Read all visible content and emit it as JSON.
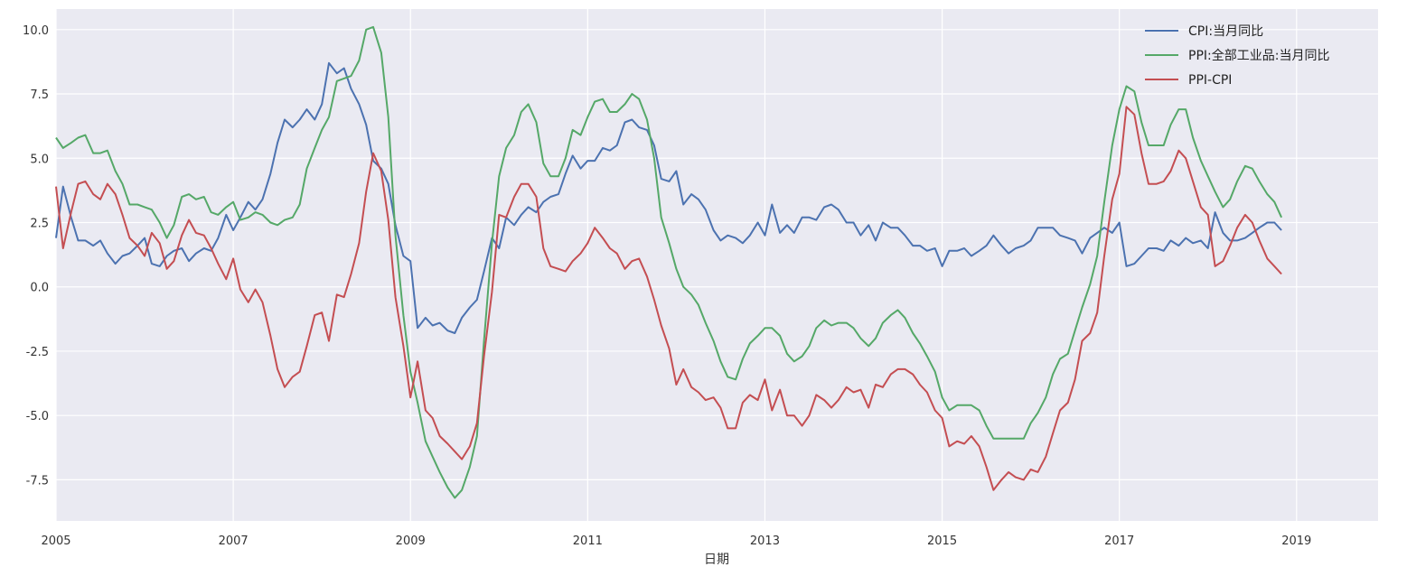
{
  "chart_data": {
    "type": "line",
    "title": "",
    "xlabel": "日期",
    "ylabel": "",
    "xlim": [
      2005.0,
      2019.92
    ],
    "ylim": [
      -9.1,
      10.8
    ],
    "xticks": [
      2005,
      2007,
      2009,
      2011,
      2013,
      2015,
      2017,
      2019
    ],
    "xtick_labels": [
      "2005",
      "2007",
      "2009",
      "2011",
      "2013",
      "2015",
      "2017",
      "2019"
    ],
    "yticks": [
      -7.5,
      -5.0,
      -2.5,
      0.0,
      2.5,
      5.0,
      7.5,
      10.0
    ],
    "ytick_labels": [
      "-7.5",
      "-5.0",
      "-2.5",
      "0.0",
      "2.5",
      "5.0",
      "7.5",
      "10.0"
    ],
    "grid": true,
    "legend_position": "top-right",
    "colors": {
      "background": "#EAEAF2",
      "grid": "#FFFFFF"
    },
    "series": [
      {
        "name": "CPI:当月同比",
        "color": "#4C72B0",
        "x": [
          2005.0,
          2005.08,
          2005.17,
          2005.25,
          2005.33,
          2005.42,
          2005.5,
          2005.58,
          2005.67,
          2005.75,
          2005.83,
          2005.92,
          2006.0,
          2006.08,
          2006.17,
          2006.25,
          2006.33,
          2006.42,
          2006.5,
          2006.58,
          2006.67,
          2006.75,
          2006.83,
          2006.92,
          2007.0,
          2007.08,
          2007.17,
          2007.25,
          2007.33,
          2007.42,
          2007.5,
          2007.58,
          2007.67,
          2007.75,
          2007.83,
          2007.92,
          2008.0,
          2008.08,
          2008.17,
          2008.25,
          2008.33,
          2008.42,
          2008.5,
          2008.58,
          2008.67,
          2008.75,
          2008.83,
          2008.92,
          2009.0,
          2009.08,
          2009.17,
          2009.25,
          2009.33,
          2009.42,
          2009.5,
          2009.58,
          2009.67,
          2009.75,
          2009.83,
          2009.92,
          2010.0,
          2010.08,
          2010.17,
          2010.25,
          2010.33,
          2010.42,
          2010.5,
          2010.58,
          2010.67,
          2010.75,
          2010.83,
          2010.92,
          2011.0,
          2011.08,
          2011.17,
          2011.25,
          2011.33,
          2011.42,
          2011.5,
          2011.58,
          2011.67,
          2011.75,
          2011.83,
          2011.92,
          2012.0,
          2012.08,
          2012.17,
          2012.25,
          2012.33,
          2012.42,
          2012.5,
          2012.58,
          2012.67,
          2012.75,
          2012.83,
          2012.92,
          2013.0,
          2013.08,
          2013.17,
          2013.25,
          2013.33,
          2013.42,
          2013.5,
          2013.58,
          2013.67,
          2013.75,
          2013.83,
          2013.92,
          2014.0,
          2014.08,
          2014.17,
          2014.25,
          2014.33,
          2014.42,
          2014.5,
          2014.58,
          2014.67,
          2014.75,
          2014.83,
          2014.92,
          2015.0,
          2015.08,
          2015.17,
          2015.25,
          2015.33,
          2015.42,
          2015.5,
          2015.58,
          2015.67,
          2015.75,
          2015.83,
          2015.92,
          2016.0,
          2016.08,
          2016.17,
          2016.25,
          2016.33,
          2016.42,
          2016.5,
          2016.58,
          2016.67,
          2016.75,
          2016.83,
          2016.92,
          2017.0,
          2017.08,
          2017.17,
          2017.25,
          2017.33,
          2017.42,
          2017.5,
          2017.58,
          2017.67,
          2017.75,
          2017.83,
          2017.92,
          2018.0,
          2018.08,
          2018.17,
          2018.25,
          2018.33,
          2018.42,
          2018.5,
          2018.58,
          2018.67,
          2018.75,
          2018.83
        ],
        "values": [
          1.9,
          3.9,
          2.7,
          1.8,
          1.8,
          1.6,
          1.8,
          1.3,
          0.9,
          1.2,
          1.3,
          1.6,
          1.9,
          0.9,
          0.8,
          1.2,
          1.4,
          1.5,
          1.0,
          1.3,
          1.5,
          1.4,
          1.9,
          2.8,
          2.2,
          2.7,
          3.3,
          3.0,
          3.4,
          4.4,
          5.6,
          6.5,
          6.2,
          6.5,
          6.9,
          6.5,
          7.1,
          8.7,
          8.3,
          8.5,
          7.7,
          7.1,
          6.3,
          4.9,
          4.6,
          4.0,
          2.4,
          1.2,
          1.0,
          -1.6,
          -1.2,
          -1.5,
          -1.4,
          -1.7,
          -1.8,
          -1.2,
          -0.8,
          -0.5,
          0.6,
          1.9,
          1.5,
          2.7,
          2.4,
          2.8,
          3.1,
          2.9,
          3.3,
          3.5,
          3.6,
          4.4,
          5.1,
          4.6,
          4.9,
          4.9,
          5.4,
          5.3,
          5.5,
          6.4,
          6.5,
          6.2,
          6.1,
          5.5,
          4.2,
          4.1,
          4.5,
          3.2,
          3.6,
          3.4,
          3.0,
          2.2,
          1.8,
          2.0,
          1.9,
          1.7,
          2.0,
          2.5,
          2.0,
          3.2,
          2.1,
          2.4,
          2.1,
          2.7,
          2.7,
          2.6,
          3.1,
          3.2,
          3.0,
          2.5,
          2.5,
          2.0,
          2.4,
          1.8,
          2.5,
          2.3,
          2.3,
          2.0,
          1.6,
          1.6,
          1.4,
          1.5,
          0.8,
          1.4,
          1.4,
          1.5,
          1.2,
          1.4,
          1.6,
          2.0,
          1.6,
          1.3,
          1.5,
          1.6,
          1.8,
          2.3,
          2.3,
          2.3,
          2.0,
          1.9,
          1.8,
          1.3,
          1.9,
          2.1,
          2.3,
          2.1,
          2.5,
          0.8,
          0.9,
          1.2,
          1.5,
          1.5,
          1.4,
          1.8,
          1.6,
          1.9,
          1.7,
          1.8,
          1.5,
          2.9,
          2.1,
          1.8,
          1.8,
          1.9,
          2.1,
          2.3,
          2.5,
          2.5,
          2.2
        ]
      },
      {
        "name": "PPI:全部工业品:当月同比",
        "color": "#55A868",
        "x": [
          2005.0,
          2005.08,
          2005.17,
          2005.25,
          2005.33,
          2005.42,
          2005.5,
          2005.58,
          2005.67,
          2005.75,
          2005.83,
          2005.92,
          2006.0,
          2006.08,
          2006.17,
          2006.25,
          2006.33,
          2006.42,
          2006.5,
          2006.58,
          2006.67,
          2006.75,
          2006.83,
          2006.92,
          2007.0,
          2007.08,
          2007.17,
          2007.25,
          2007.33,
          2007.42,
          2007.5,
          2007.58,
          2007.67,
          2007.75,
          2007.83,
          2007.92,
          2008.0,
          2008.08,
          2008.17,
          2008.25,
          2008.33,
          2008.42,
          2008.5,
          2008.58,
          2008.67,
          2008.75,
          2008.83,
          2008.92,
          2009.0,
          2009.08,
          2009.17,
          2009.25,
          2009.33,
          2009.42,
          2009.5,
          2009.58,
          2009.67,
          2009.75,
          2009.83,
          2009.92,
          2010.0,
          2010.08,
          2010.17,
          2010.25,
          2010.33,
          2010.42,
          2010.5,
          2010.58,
          2010.67,
          2010.75,
          2010.83,
          2010.92,
          2011.0,
          2011.08,
          2011.17,
          2011.25,
          2011.33,
          2011.42,
          2011.5,
          2011.58,
          2011.67,
          2011.75,
          2011.83,
          2011.92,
          2012.0,
          2012.08,
          2012.17,
          2012.25,
          2012.33,
          2012.42,
          2012.5,
          2012.58,
          2012.67,
          2012.75,
          2012.83,
          2012.92,
          2013.0,
          2013.08,
          2013.17,
          2013.25,
          2013.33,
          2013.42,
          2013.5,
          2013.58,
          2013.67,
          2013.75,
          2013.83,
          2013.92,
          2014.0,
          2014.08,
          2014.17,
          2014.25,
          2014.33,
          2014.42,
          2014.5,
          2014.58,
          2014.67,
          2014.75,
          2014.83,
          2014.92,
          2015.0,
          2015.08,
          2015.17,
          2015.25,
          2015.33,
          2015.42,
          2015.5,
          2015.58,
          2015.67,
          2015.75,
          2015.83,
          2015.92,
          2016.0,
          2016.08,
          2016.17,
          2016.25,
          2016.33,
          2016.42,
          2016.5,
          2016.58,
          2016.67,
          2016.75,
          2016.83,
          2016.92,
          2017.0,
          2017.08,
          2017.17,
          2017.25,
          2017.33,
          2017.42,
          2017.5,
          2017.58,
          2017.67,
          2017.75,
          2017.83,
          2017.92,
          2018.0,
          2018.08,
          2018.17,
          2018.25,
          2018.33,
          2018.42,
          2018.5,
          2018.58,
          2018.67,
          2018.75,
          2018.83
        ],
        "values": [
          5.8,
          5.4,
          5.6,
          5.8,
          5.9,
          5.2,
          5.2,
          5.3,
          4.5,
          4.0,
          3.2,
          3.2,
          3.1,
          3.0,
          2.5,
          1.9,
          2.4,
          3.5,
          3.6,
          3.4,
          3.5,
          2.9,
          2.8,
          3.1,
          3.3,
          2.6,
          2.7,
          2.9,
          2.8,
          2.5,
          2.4,
          2.6,
          2.7,
          3.2,
          4.6,
          5.4,
          6.1,
          6.6,
          8.0,
          8.1,
          8.2,
          8.8,
          10.0,
          10.1,
          9.1,
          6.6,
          2.0,
          -1.1,
          -3.3,
          -4.5,
          -6.0,
          -6.6,
          -7.2,
          -7.8,
          -8.2,
          -7.9,
          -7.0,
          -5.8,
          -2.1,
          1.7,
          4.3,
          5.4,
          5.9,
          6.8,
          7.1,
          6.4,
          4.8,
          4.3,
          4.3,
          5.0,
          6.1,
          5.9,
          6.6,
          7.2,
          7.3,
          6.8,
          6.8,
          7.1,
          7.5,
          7.3,
          6.5,
          5.0,
          2.7,
          1.7,
          0.7,
          0.0,
          -0.3,
          -0.7,
          -1.4,
          -2.1,
          -2.9,
          -3.5,
          -3.6,
          -2.8,
          -2.2,
          -1.9,
          -1.6,
          -1.6,
          -1.9,
          -2.6,
          -2.9,
          -2.7,
          -2.3,
          -1.6,
          -1.3,
          -1.5,
          -1.4,
          -1.4,
          -1.6,
          -2.0,
          -2.3,
          -2.0,
          -1.4,
          -1.1,
          -0.9,
          -1.2,
          -1.8,
          -2.2,
          -2.7,
          -3.3,
          -4.3,
          -4.8,
          -4.6,
          -4.6,
          -4.6,
          -4.8,
          -5.4,
          -5.9,
          -5.9,
          -5.9,
          -5.9,
          -5.9,
          -5.3,
          -4.9,
          -4.3,
          -3.4,
          -2.8,
          -2.6,
          -1.7,
          -0.8,
          0.1,
          1.2,
          3.3,
          5.5,
          6.9,
          7.8,
          7.6,
          6.4,
          5.5,
          5.5,
          5.5,
          6.3,
          6.9,
          6.9,
          5.8,
          4.9,
          4.3,
          3.7,
          3.1,
          3.4,
          4.1,
          4.7,
          4.6,
          4.1,
          3.6,
          3.3,
          2.7
        ]
      },
      {
        "name": "PPI-CPI",
        "color": "#C44E52",
        "x": [
          2005.0,
          2005.08,
          2005.17,
          2005.25,
          2005.33,
          2005.42,
          2005.5,
          2005.58,
          2005.67,
          2005.75,
          2005.83,
          2005.92,
          2006.0,
          2006.08,
          2006.17,
          2006.25,
          2006.33,
          2006.42,
          2006.5,
          2006.58,
          2006.67,
          2006.75,
          2006.83,
          2006.92,
          2007.0,
          2007.08,
          2007.17,
          2007.25,
          2007.33,
          2007.42,
          2007.5,
          2007.58,
          2007.67,
          2007.75,
          2007.83,
          2007.92,
          2008.0,
          2008.08,
          2008.17,
          2008.25,
          2008.33,
          2008.42,
          2008.5,
          2008.58,
          2008.67,
          2008.75,
          2008.83,
          2008.92,
          2009.0,
          2009.08,
          2009.17,
          2009.25,
          2009.33,
          2009.42,
          2009.5,
          2009.58,
          2009.67,
          2009.75,
          2009.83,
          2009.92,
          2010.0,
          2010.08,
          2010.17,
          2010.25,
          2010.33,
          2010.42,
          2010.5,
          2010.58,
          2010.67,
          2010.75,
          2010.83,
          2010.92,
          2011.0,
          2011.08,
          2011.17,
          2011.25,
          2011.33,
          2011.42,
          2011.5,
          2011.58,
          2011.67,
          2011.75,
          2011.83,
          2011.92,
          2012.0,
          2012.08,
          2012.17,
          2012.25,
          2012.33,
          2012.42,
          2012.5,
          2012.58,
          2012.67,
          2012.75,
          2012.83,
          2012.92,
          2013.0,
          2013.08,
          2013.17,
          2013.25,
          2013.33,
          2013.42,
          2013.5,
          2013.58,
          2013.67,
          2013.75,
          2013.83,
          2013.92,
          2014.0,
          2014.08,
          2014.17,
          2014.25,
          2014.33,
          2014.42,
          2014.5,
          2014.58,
          2014.67,
          2014.75,
          2014.83,
          2014.92,
          2015.0,
          2015.08,
          2015.17,
          2015.25,
          2015.33,
          2015.42,
          2015.5,
          2015.58,
          2015.67,
          2015.75,
          2015.83,
          2015.92,
          2016.0,
          2016.08,
          2016.17,
          2016.25,
          2016.33,
          2016.42,
          2016.5,
          2016.58,
          2016.67,
          2016.75,
          2016.83,
          2016.92,
          2017.0,
          2017.08,
          2017.17,
          2017.25,
          2017.33,
          2017.42,
          2017.5,
          2017.58,
          2017.67,
          2017.75,
          2017.83,
          2017.92,
          2018.0,
          2018.08,
          2018.17,
          2018.25,
          2018.33,
          2018.42,
          2018.5,
          2018.58,
          2018.67,
          2018.75,
          2018.83
        ],
        "values": [
          3.9,
          1.5,
          2.9,
          4.0,
          4.1,
          3.6,
          3.4,
          4.0,
          3.6,
          2.8,
          1.9,
          1.6,
          1.2,
          2.1,
          1.7,
          0.7,
          1.0,
          2.0,
          2.6,
          2.1,
          2.0,
          1.5,
          0.9,
          0.3,
          1.1,
          -0.1,
          -0.6,
          -0.1,
          -0.6,
          -1.9,
          -3.2,
          -3.9,
          -3.5,
          -3.3,
          -2.3,
          -1.1,
          -1.0,
          -2.1,
          -0.3,
          -0.4,
          0.5,
          1.7,
          3.7,
          5.2,
          4.5,
          2.6,
          -0.4,
          -2.3,
          -4.3,
          -2.9,
          -4.8,
          -5.1,
          -5.8,
          -6.1,
          -6.4,
          -6.7,
          -6.2,
          -5.3,
          -2.7,
          -0.2,
          2.8,
          2.7,
          3.5,
          4.0,
          4.0,
          3.5,
          1.5,
          0.8,
          0.7,
          0.6,
          1.0,
          1.3,
          1.7,
          2.3,
          1.9,
          1.5,
          1.3,
          0.7,
          1.0,
          1.1,
          0.4,
          -0.5,
          -1.5,
          -2.4,
          -3.8,
          -3.2,
          -3.9,
          -4.1,
          -4.4,
          -4.3,
          -4.7,
          -5.5,
          -5.5,
          -4.5,
          -4.2,
          -4.4,
          -3.6,
          -4.8,
          -4.0,
          -5.0,
          -5.0,
          -5.4,
          -5.0,
          -4.2,
          -4.4,
          -4.7,
          -4.4,
          -3.9,
          -4.1,
          -4.0,
          -4.7,
          -3.8,
          -3.9,
          -3.4,
          -3.2,
          -3.2,
          -3.4,
          -3.8,
          -4.1,
          -4.8,
          -5.1,
          -6.2,
          -6.0,
          -6.1,
          -5.8,
          -6.2,
          -7.0,
          -7.9,
          -7.5,
          -7.2,
          -7.4,
          -7.5,
          -7.1,
          -7.2,
          -6.6,
          -5.7,
          -4.8,
          -4.5,
          -3.6,
          -2.1,
          -1.8,
          -1.0,
          1.2,
          3.4,
          4.4,
          7.0,
          6.7,
          5.2,
          4.0,
          4.0,
          4.1,
          4.5,
          5.3,
          5.0,
          4.1,
          3.1,
          2.8,
          0.8,
          1.0,
          1.6,
          2.3,
          2.8,
          2.5,
          1.8,
          1.1,
          0.8,
          0.5
        ]
      }
    ]
  }
}
